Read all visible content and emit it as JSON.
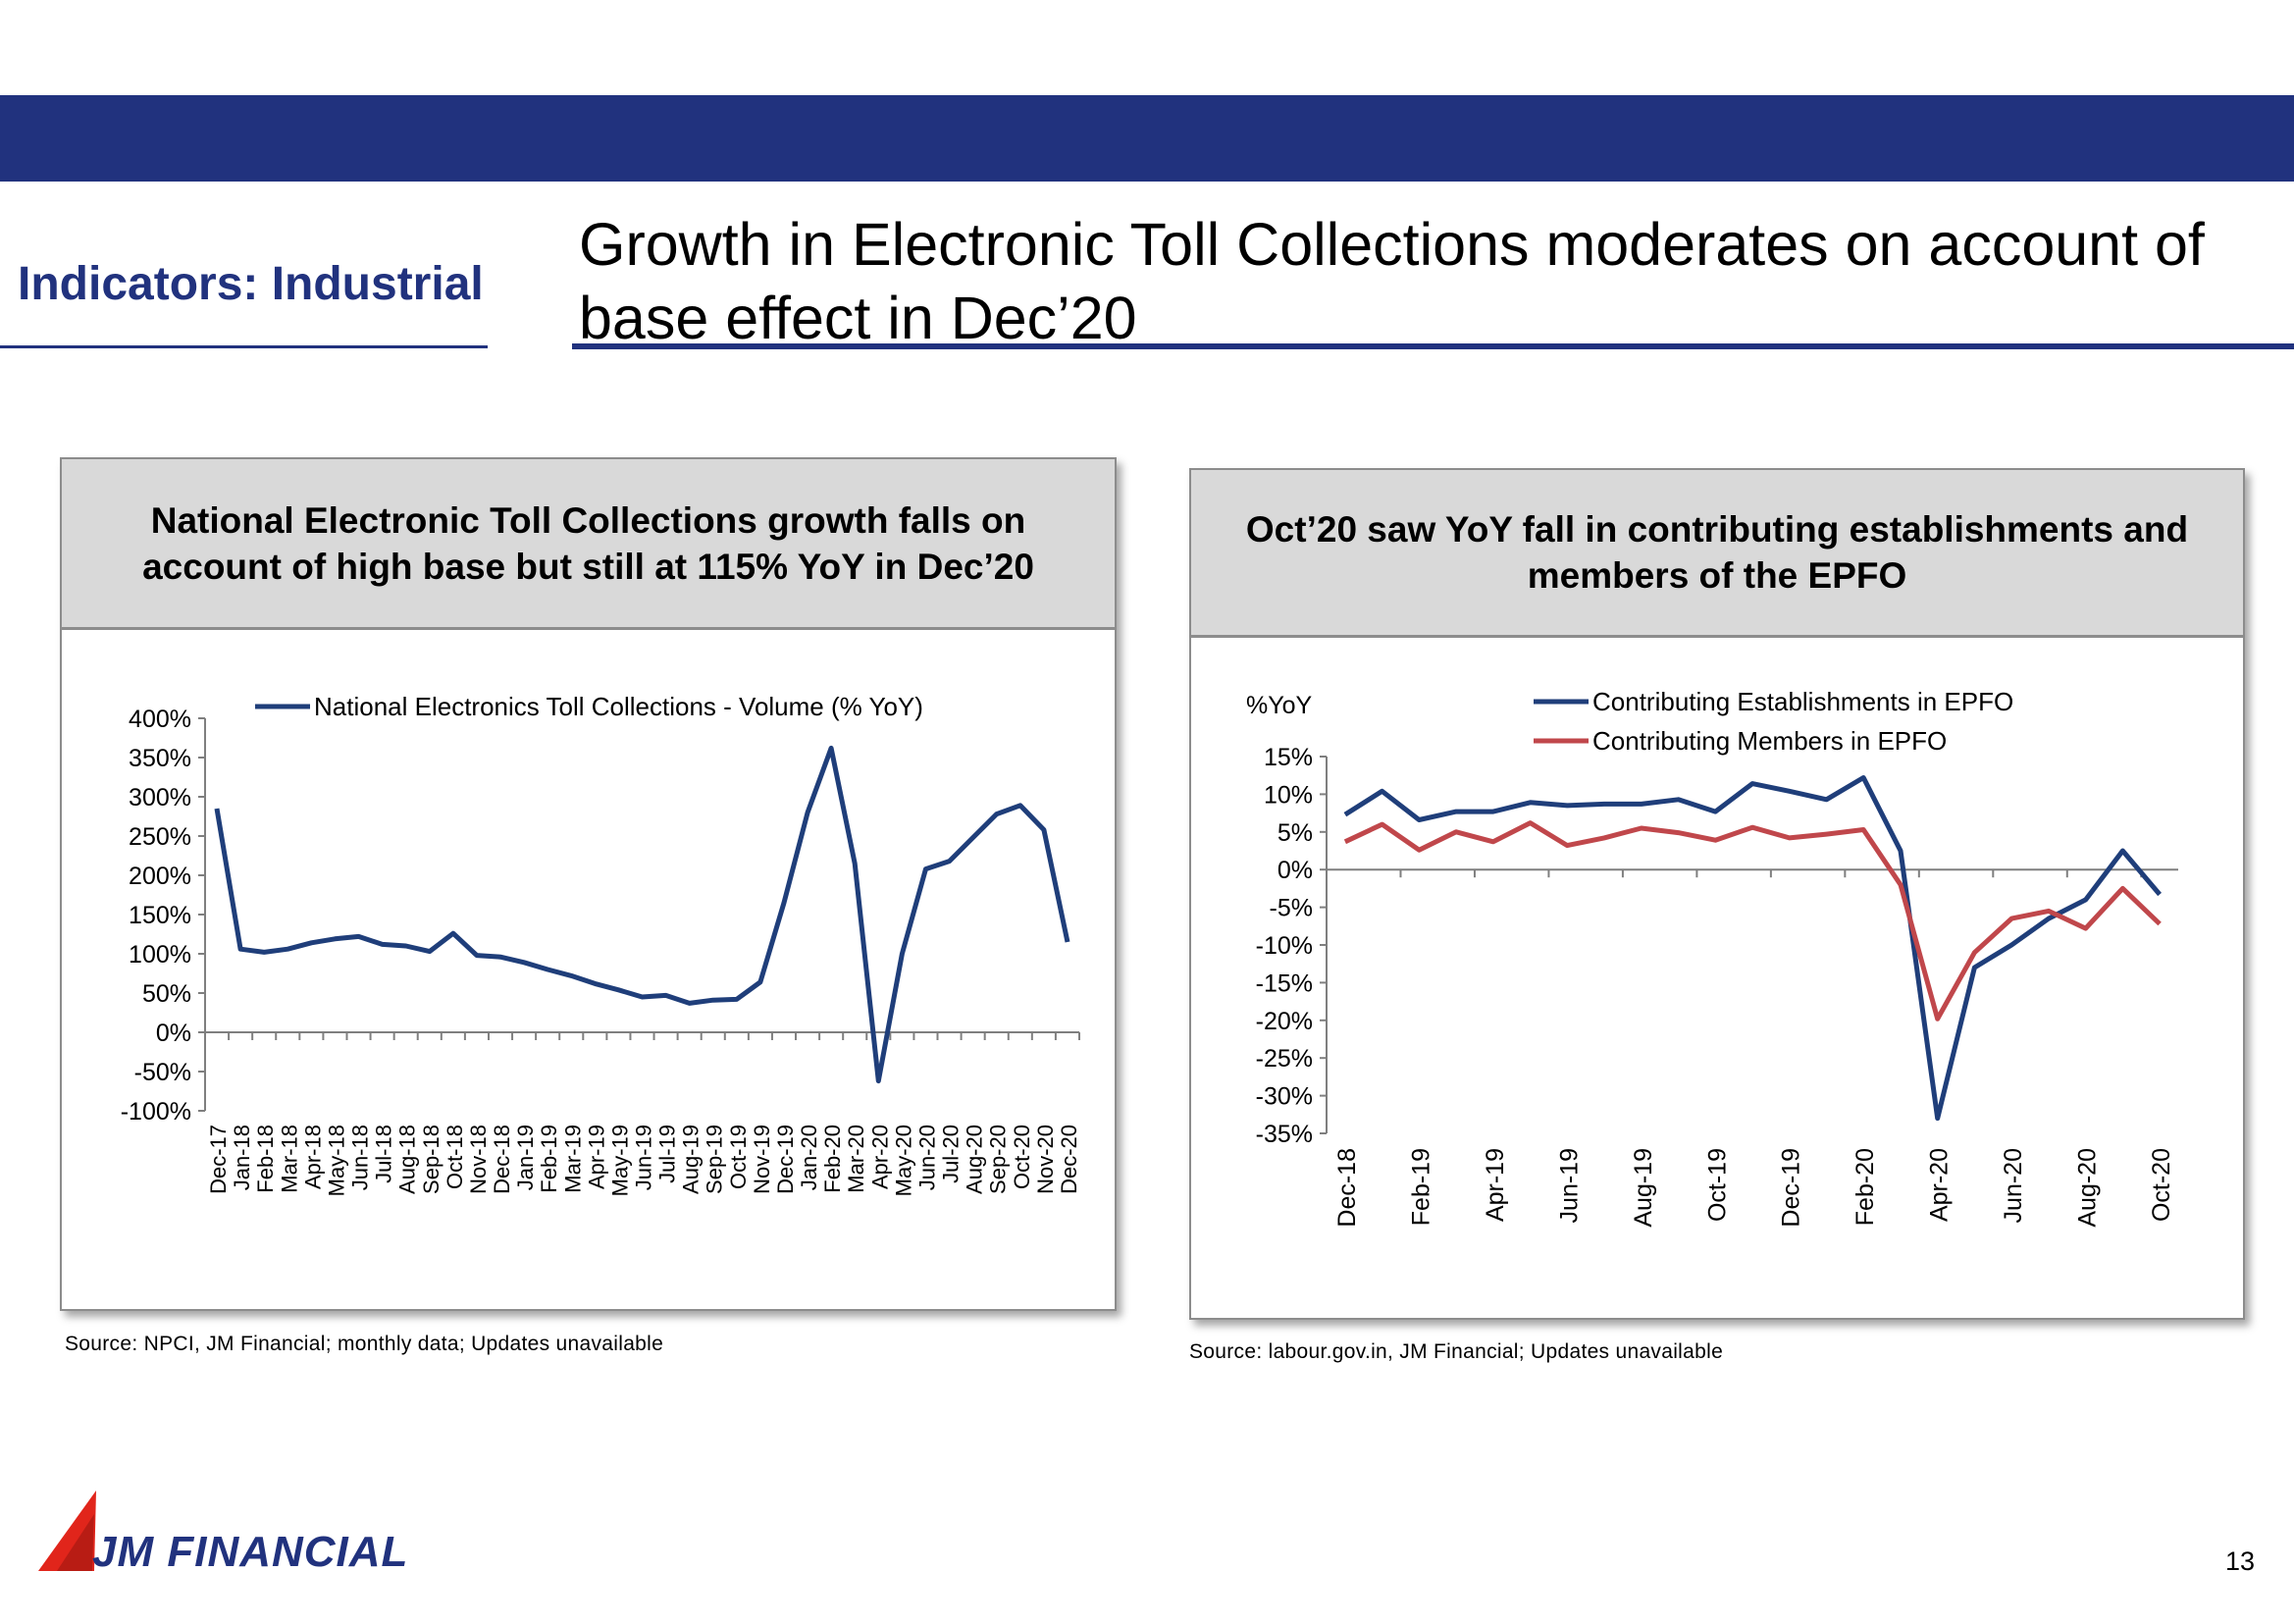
{
  "header": {
    "section_label": "Indicators: Industrial",
    "headline": "Growth in Electronic Toll Collections moderates on account of base effect in Dec’20"
  },
  "colors": {
    "brand_navy": "#21327e",
    "series_blue": "#1f3e7a",
    "series_red": "#c0474b",
    "panel_head_grey": "#d9d9d9"
  },
  "left_panel": {
    "title": "National Electronic Toll Collections growth falls on account of high base but still at 115% YoY in Dec’20",
    "source": "Source:  NPCI, JM Financial; monthly data; Updates unavailable"
  },
  "right_panel": {
    "title": "Oct’20 saw YoY fall in contributing establishments and members of the EPFO",
    "source": "Source: labour.gov.in, JM Financial; Updates unavailable"
  },
  "footer": {
    "logo_text": "JM FINANCIAL",
    "page_number": "13"
  },
  "chart_data": [
    {
      "type": "line",
      "title": "",
      "xlabel": "",
      "ylabel": "",
      "ylim": [
        -100,
        400
      ],
      "yticks": [
        400,
        350,
        300,
        250,
        200,
        150,
        100,
        50,
        0,
        -50,
        -100
      ],
      "ytick_labels": [
        "400%",
        "350%",
        "300%",
        "250%",
        "200%",
        "150%",
        "100%",
        "50%",
        "0%",
        "-50%",
        "-100%"
      ],
      "legend_position": "top",
      "grid": false,
      "categories": [
        "Dec-17",
        "Jan-18",
        "Feb-18",
        "Mar-18",
        "Apr-18",
        "May-18",
        "Jun-18",
        "Jul-18",
        "Aug-18",
        "Sep-18",
        "Oct-18",
        "Nov-18",
        "Dec-18",
        "Jan-19",
        "Feb-19",
        "Mar-19",
        "Apr-19",
        "May-19",
        "Jun-19",
        "Jul-19",
        "Aug-19",
        "Sep-19",
        "Oct-19",
        "Nov-19",
        "Dec-19",
        "Jan-20",
        "Feb-20",
        "Mar-20",
        "Apr-20",
        "May-20",
        "Jun-20",
        "Jul-20",
        "Aug-20",
        "Sep-20",
        "Oct-20",
        "Nov-20",
        "Dec-20"
      ],
      "series": [
        {
          "name": "National Electronics Toll Collections - Volume (% YoY)",
          "color": "#1f3e7a",
          "values": [
            285,
            106,
            102,
            106,
            114,
            119,
            122,
            112,
            110,
            103,
            126,
            98,
            96,
            89,
            80,
            72,
            62,
            54,
            45,
            47,
            37,
            41,
            42,
            64,
            165,
            280,
            362,
            215,
            -62,
            100,
            208,
            218,
            248,
            278,
            289,
            258,
            115
          ]
        }
      ]
    },
    {
      "type": "line",
      "title": "",
      "xlabel": "",
      "ylabel": "%YoY",
      "ylim": [
        -35,
        15
      ],
      "yticks": [
        15,
        10,
        5,
        0,
        -5,
        -10,
        -15,
        -20,
        -25,
        -30,
        -35
      ],
      "ytick_labels": [
        "15%",
        "10%",
        "5%",
        "0%",
        "-5%",
        "-10%",
        "-15%",
        "-20%",
        "-25%",
        "-30%",
        "-35%"
      ],
      "legend_position": "top",
      "grid": false,
      "categories": [
        "Dec-18",
        "Jan-19",
        "Feb-19",
        "Mar-19",
        "Apr-19",
        "May-19",
        "Jun-19",
        "Jul-19",
        "Aug-19",
        "Sep-19",
        "Oct-19",
        "Nov-19",
        "Dec-19",
        "Jan-20",
        "Feb-20",
        "Mar-20",
        "Apr-20",
        "May-20",
        "Jun-20",
        "Jul-20",
        "Aug-20",
        "Sep-20",
        "Oct-20"
      ],
      "tick_labels_shown": [
        "Dec-18",
        "Feb-19",
        "Apr-19",
        "Jun-19",
        "Aug-19",
        "Oct-19",
        "Dec-19",
        "Feb-20",
        "Apr-20",
        "Jun-20",
        "Aug-20",
        "Oct-20"
      ],
      "series": [
        {
          "name": "Contributing Establishments in EPFO",
          "color": "#1f3e7a",
          "values": [
            7.3,
            10.4,
            6.6,
            7.7,
            7.7,
            8.9,
            8.5,
            8.7,
            8.7,
            9.3,
            7.7,
            11.4,
            10.4,
            9.3,
            12.2,
            2.5,
            -33,
            -13,
            -10,
            -6.5,
            -4,
            2.5,
            -3.3
          ]
        },
        {
          "name": "Contributing Members in EPFO",
          "color": "#c0474b",
          "values": [
            3.7,
            6,
            2.6,
            5,
            3.7,
            6.2,
            3.2,
            4.2,
            5.5,
            4.9,
            3.9,
            5.6,
            4.2,
            4.7,
            5.3,
            -2,
            -19.8,
            -11,
            -6.5,
            -5.5,
            -7.8,
            -2.5,
            -7.2
          ]
        }
      ]
    }
  ]
}
